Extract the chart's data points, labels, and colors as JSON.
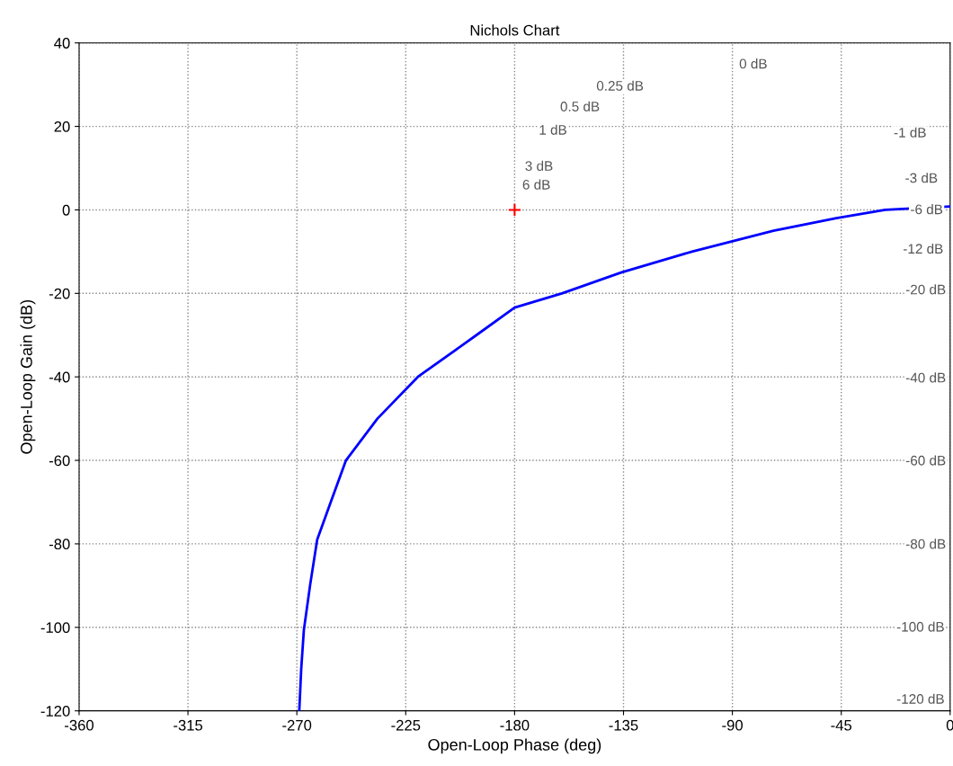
{
  "chart_data": {
    "type": "line",
    "title": "Nichols Chart",
    "xlabel": "Open-Loop Phase (deg)",
    "ylabel": "Open-Loop Gain (dB)",
    "xlim": [
      -360,
      0
    ],
    "xticks": [
      -360,
      -315,
      -270,
      -225,
      -180,
      -135,
      -90,
      -45,
      0
    ],
    "ylim": [
      -120,
      40
    ],
    "yticks": [
      -120,
      -100,
      -80,
      -60,
      -40,
      -20,
      0,
      20,
      40
    ],
    "grid": true,
    "legend": false,
    "series": [
      {
        "color": "#0000ff",
        "line_style": "solid",
        "marker": "none",
        "x": [
          -269,
          -268.2,
          -267.1,
          -264.5,
          -261.6,
          -256,
          -249.7,
          -236.7,
          -220,
          -195.8,
          -180,
          -160.5,
          -136,
          -106.7,
          -73,
          -47,
          -26.8,
          0
        ],
        "values": [
          -120,
          -110,
          -100.6,
          -89.8,
          -79,
          -70,
          -60,
          -50,
          -40,
          -30,
          -23.4,
          -20,
          -15,
          -10,
          -5,
          -2,
          0,
          0.8
        ]
      },
      {
        "type": "scatter",
        "color": "#ff0000",
        "marker": "cross",
        "x": [
          -180
        ],
        "values": [
          0
        ]
      }
    ],
    "annotations": [
      "0 dB",
      "0.25 dB",
      "0.5 dB",
      "1 dB",
      "3 dB",
      "6 dB",
      "-1 dB",
      "-3 dB",
      "-6 dB",
      "-12 dB",
      "-20 dB",
      "-40 dB",
      "-60 dB",
      "-80 dB",
      "-100 dB",
      "-120 dB"
    ]
  }
}
